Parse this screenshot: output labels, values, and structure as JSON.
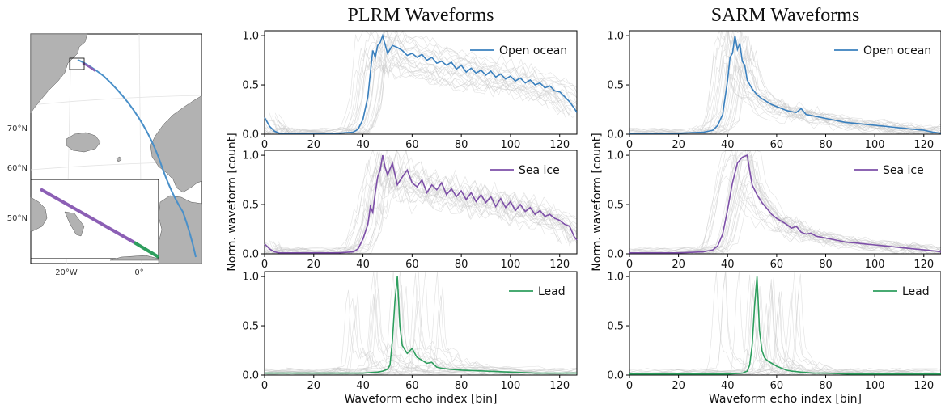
{
  "titles": {
    "plrm": "PLRM Waveforms",
    "sarm": "SARM Waveforms"
  },
  "map": {
    "lat_labels": [
      "70°N",
      "60°N",
      "50°N"
    ],
    "lon_labels": [
      "20°W",
      "0°"
    ],
    "colors": {
      "land": "#b2b2b2",
      "sea": "#ffffff",
      "open_ocean": "#4a90c9",
      "sea_ice": "#8c5fb5",
      "lead": "#2e9e5e"
    }
  },
  "chart_data": [
    {
      "type": "line",
      "column": "PLRM Waveforms",
      "legend": "Open ocean",
      "color": "#3a80be",
      "xlim": [
        0,
        127
      ],
      "ylim": [
        0,
        1.05
      ],
      "xticks": [
        "0",
        "20",
        "40",
        "60",
        "80",
        "100",
        "120"
      ],
      "yticks": [
        "0.0",
        "0.5",
        "1.0"
      ],
      "xlabel": "",
      "ylabel": "",
      "x": [
        0,
        2,
        4,
        6,
        8,
        10,
        20,
        30,
        36,
        38,
        40,
        42,
        43,
        44,
        45,
        46,
        47,
        48,
        50,
        52,
        54,
        56,
        58,
        60,
        62,
        64,
        66,
        68,
        70,
        72,
        74,
        76,
        78,
        80,
        82,
        84,
        86,
        88,
        90,
        92,
        94,
        96,
        98,
        100,
        102,
        104,
        106,
        108,
        110,
        112,
        114,
        116,
        118,
        120,
        122,
        124,
        126,
        127
      ],
      "y": [
        0.17,
        0.08,
        0.03,
        0.01,
        0.01,
        0.01,
        0.01,
        0.01,
        0.02,
        0.05,
        0.15,
        0.38,
        0.62,
        0.85,
        0.78,
        0.9,
        0.93,
        1.0,
        0.82,
        0.9,
        0.88,
        0.85,
        0.8,
        0.82,
        0.78,
        0.81,
        0.75,
        0.78,
        0.72,
        0.74,
        0.7,
        0.73,
        0.66,
        0.7,
        0.63,
        0.67,
        0.62,
        0.65,
        0.6,
        0.64,
        0.58,
        0.61,
        0.56,
        0.59,
        0.54,
        0.57,
        0.52,
        0.55,
        0.5,
        0.52,
        0.47,
        0.49,
        0.44,
        0.43,
        0.38,
        0.33,
        0.26,
        0.22
      ]
    },
    {
      "type": "line",
      "column": "SARM Waveforms",
      "legend": "Open ocean",
      "color": "#3a80be",
      "xlim": [
        0,
        127
      ],
      "ylim": [
        0,
        1.05
      ],
      "xticks": [
        "0",
        "20",
        "40",
        "60",
        "80",
        "100",
        "120"
      ],
      "yticks": [
        "0.0",
        "0.5",
        "1.0"
      ],
      "xlabel": "",
      "ylabel": "",
      "x": [
        0,
        10,
        20,
        30,
        34,
        36,
        38,
        40,
        41,
        42,
        43,
        44,
        45,
        46,
        47,
        48,
        50,
        52,
        54,
        56,
        58,
        60,
        62,
        64,
        66,
        68,
        70,
        72,
        74,
        76,
        80,
        84,
        88,
        92,
        96,
        100,
        104,
        108,
        112,
        116,
        120,
        124,
        127
      ],
      "y": [
        0.01,
        0.01,
        0.01,
        0.02,
        0.04,
        0.09,
        0.2,
        0.55,
        0.78,
        0.82,
        1.0,
        0.86,
        0.92,
        0.74,
        0.7,
        0.55,
        0.46,
        0.4,
        0.36,
        0.33,
        0.3,
        0.28,
        0.26,
        0.24,
        0.23,
        0.22,
        0.26,
        0.2,
        0.19,
        0.18,
        0.16,
        0.14,
        0.12,
        0.11,
        0.1,
        0.09,
        0.08,
        0.07,
        0.06,
        0.05,
        0.04,
        0.02,
        0.01
      ]
    },
    {
      "type": "line",
      "column": "PLRM Waveforms",
      "legend": "Sea ice",
      "color": "#7d4fa8",
      "xlim": [
        0,
        127
      ],
      "ylim": [
        0,
        1.05
      ],
      "xticks": [
        "0",
        "20",
        "40",
        "60",
        "80",
        "100",
        "120"
      ],
      "yticks": [
        "0.0",
        "0.5",
        "1.0"
      ],
      "xlabel": "",
      "ylabel": "Norm. waveform [count]",
      "x": [
        0,
        2,
        4,
        6,
        10,
        20,
        30,
        36,
        38,
        40,
        42,
        43,
        44,
        45,
        46,
        47,
        48,
        49,
        50,
        52,
        54,
        56,
        58,
        60,
        62,
        64,
        66,
        68,
        70,
        72,
        74,
        76,
        78,
        80,
        82,
        84,
        86,
        88,
        90,
        92,
        94,
        96,
        98,
        100,
        102,
        104,
        106,
        108,
        110,
        112,
        114,
        116,
        118,
        120,
        122,
        124,
        126,
        127
      ],
      "y": [
        0.1,
        0.05,
        0.02,
        0.01,
        0.01,
        0.01,
        0.01,
        0.02,
        0.05,
        0.15,
        0.3,
        0.48,
        0.42,
        0.62,
        0.78,
        0.85,
        1.0,
        0.88,
        0.8,
        0.92,
        0.7,
        0.78,
        0.85,
        0.72,
        0.68,
        0.75,
        0.62,
        0.7,
        0.65,
        0.72,
        0.6,
        0.66,
        0.58,
        0.64,
        0.55,
        0.62,
        0.53,
        0.6,
        0.52,
        0.58,
        0.48,
        0.56,
        0.47,
        0.53,
        0.44,
        0.5,
        0.43,
        0.47,
        0.4,
        0.44,
        0.38,
        0.4,
        0.36,
        0.34,
        0.3,
        0.28,
        0.17,
        0.14
      ]
    },
    {
      "type": "line",
      "column": "SARM Waveforms",
      "legend": "Sea ice",
      "color": "#7d4fa8",
      "xlim": [
        0,
        127
      ],
      "ylim": [
        0,
        1.05
      ],
      "xticks": [
        "0",
        "20",
        "40",
        "60",
        "80",
        "100",
        "120"
      ],
      "yticks": [
        "0.0",
        "0.5",
        "1.0"
      ],
      "xlabel": "",
      "ylabel": "Norm. waveform [count]",
      "x": [
        0,
        10,
        20,
        30,
        34,
        36,
        38,
        40,
        42,
        44,
        46,
        48,
        50,
        52,
        54,
        56,
        58,
        60,
        62,
        64,
        66,
        68,
        70,
        72,
        74,
        76,
        78,
        80,
        84,
        88,
        92,
        96,
        100,
        104,
        108,
        112,
        116,
        120,
        124,
        127
      ],
      "y": [
        0.01,
        0.01,
        0.01,
        0.02,
        0.04,
        0.08,
        0.2,
        0.45,
        0.72,
        0.92,
        0.98,
        1.0,
        0.7,
        0.6,
        0.52,
        0.46,
        0.4,
        0.36,
        0.33,
        0.3,
        0.26,
        0.28,
        0.22,
        0.2,
        0.21,
        0.18,
        0.17,
        0.16,
        0.14,
        0.12,
        0.11,
        0.1,
        0.09,
        0.08,
        0.07,
        0.06,
        0.05,
        0.04,
        0.03,
        0.02
      ]
    },
    {
      "type": "line",
      "column": "PLRM Waveforms",
      "legend": "Lead",
      "color": "#2e9e5e",
      "xlim": [
        0,
        127
      ],
      "ylim": [
        0,
        1.05
      ],
      "xticks": [
        "0",
        "20",
        "40",
        "60",
        "80",
        "100",
        "120"
      ],
      "yticks": [
        "0.0",
        "0.5",
        "1.0"
      ],
      "xlabel": "Waveform echo index [bin]",
      "ylabel": "",
      "x": [
        0,
        10,
        20,
        30,
        40,
        46,
        48,
        50,
        51,
        52,
        53,
        54,
        55,
        56,
        57,
        58,
        60,
        62,
        64,
        66,
        68,
        70,
        72,
        75,
        80,
        90,
        100,
        110,
        120,
        127
      ],
      "y": [
        0.02,
        0.02,
        0.02,
        0.02,
        0.02,
        0.03,
        0.04,
        0.06,
        0.1,
        0.35,
        0.75,
        1.0,
        0.5,
        0.3,
        0.26,
        0.22,
        0.27,
        0.18,
        0.15,
        0.12,
        0.13,
        0.08,
        0.07,
        0.06,
        0.05,
        0.04,
        0.03,
        0.02,
        0.02,
        0.02
      ]
    },
    {
      "type": "line",
      "column": "SARM Waveforms",
      "legend": "Lead",
      "color": "#2e9e5e",
      "xlim": [
        0,
        127
      ],
      "ylim": [
        0,
        1.05
      ],
      "xticks": [
        "0",
        "20",
        "40",
        "60",
        "80",
        "100",
        "120"
      ],
      "yticks": [
        "0.0",
        "0.5",
        "1.0"
      ],
      "xlabel": "Waveform echo index [bin]",
      "ylabel": "",
      "x": [
        0,
        10,
        20,
        30,
        40,
        46,
        48,
        49,
        50,
        51,
        52,
        53,
        54,
        55,
        56,
        58,
        60,
        62,
        64,
        66,
        70,
        75,
        80,
        90,
        100,
        110,
        120,
        127
      ],
      "y": [
        0.01,
        0.01,
        0.01,
        0.01,
        0.01,
        0.02,
        0.04,
        0.1,
        0.3,
        0.7,
        1.0,
        0.45,
        0.25,
        0.18,
        0.15,
        0.12,
        0.09,
        0.07,
        0.05,
        0.04,
        0.03,
        0.02,
        0.02,
        0.01,
        0.01,
        0.01,
        0.01,
        0.01
      ]
    }
  ]
}
